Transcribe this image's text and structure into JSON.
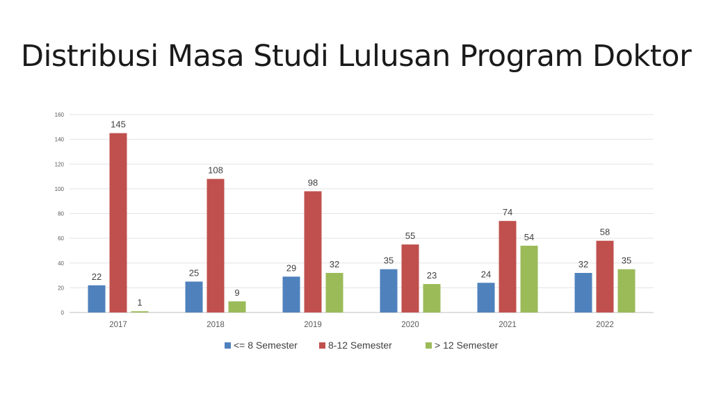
{
  "chart_data": {
    "type": "bar",
    "title": "Distribusi Masa Studi Lulusan Program Doktor",
    "xlabel": "",
    "ylabel": "",
    "ylim": [
      0,
      160
    ],
    "yticks": [
      0,
      20,
      40,
      60,
      80,
      100,
      120,
      140,
      160
    ],
    "grid": true,
    "legend_position": "bottom",
    "categories": [
      "2017",
      "2018",
      "2019",
      "2020",
      "2021",
      "2022"
    ],
    "series": [
      {
        "name": "<= 8 Semester",
        "color": "#4f81bd",
        "values": [
          22,
          25,
          29,
          35,
          24,
          32
        ]
      },
      {
        "name": "8-12 Semester",
        "color": "#c0504d",
        "values": [
          145,
          108,
          98,
          55,
          74,
          58
        ]
      },
      {
        "name": "> 12 Semester",
        "color": "#9bbb59",
        "values": [
          1,
          9,
          32,
          23,
          54,
          35
        ]
      }
    ]
  }
}
